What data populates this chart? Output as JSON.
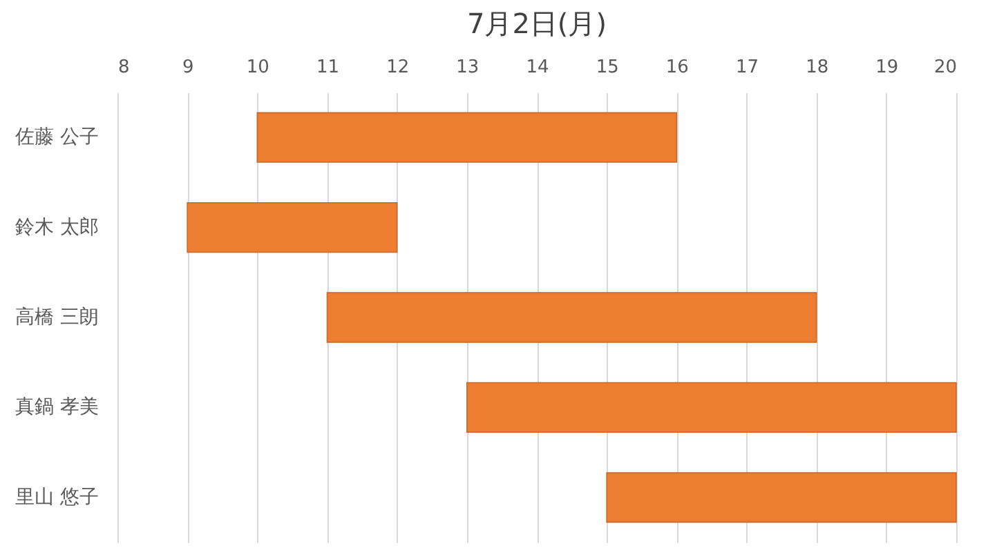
{
  "chart_data": {
    "type": "bar",
    "orientation": "horizontal",
    "title": "7月2日(月)",
    "categories": [
      "佐藤 公子",
      "鈴木 太郎",
      "高橋 三朗",
      "真鍋 孝美",
      "里山 悠子"
    ],
    "base": [
      10,
      9,
      11,
      13,
      15
    ],
    "values": [
      6,
      3,
      7,
      7,
      5
    ],
    "color": "#ed7d31",
    "xlim": [
      8,
      20
    ],
    "xticks": [
      8,
      9,
      10,
      11,
      12,
      13,
      14,
      15,
      16,
      17,
      18,
      19,
      20
    ],
    "grid": "x"
  }
}
